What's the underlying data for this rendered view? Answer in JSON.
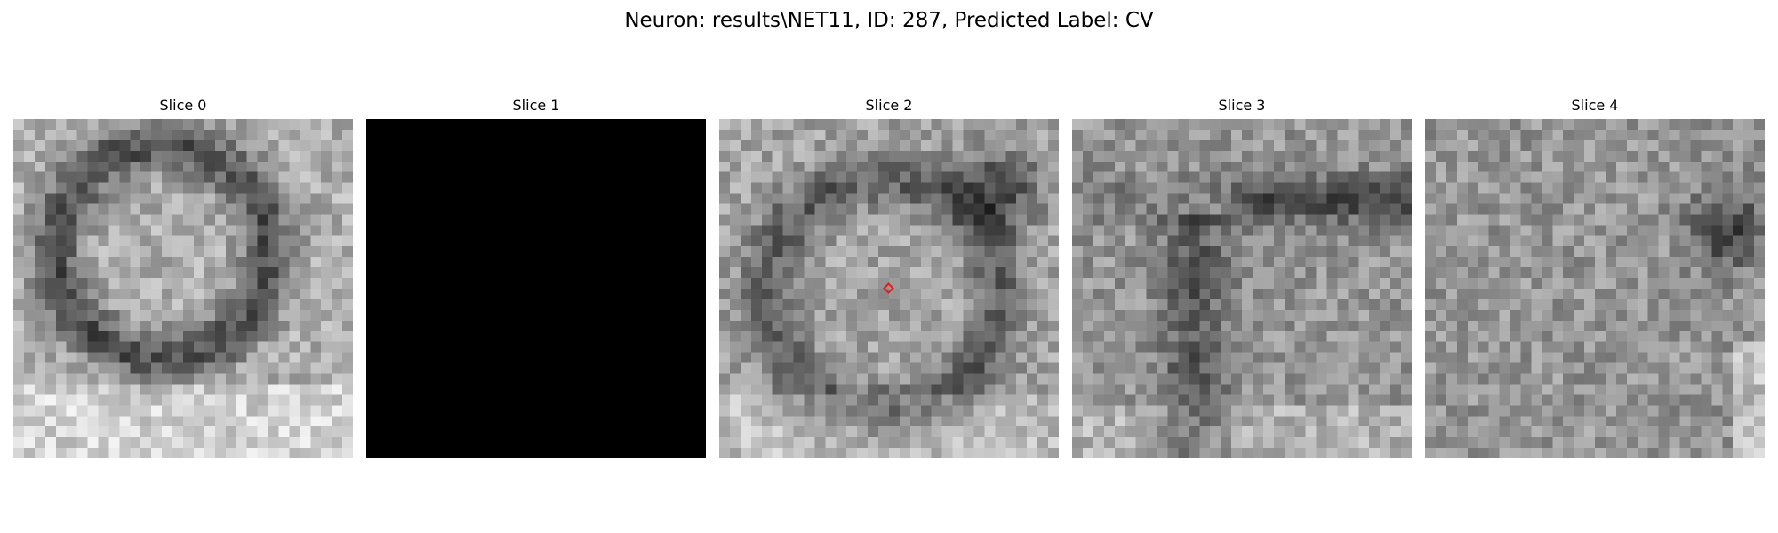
{
  "figure": {
    "title": "Neuron: results\\NET11, ID: 287, Predicted Label: CV"
  },
  "slices": [
    {
      "title": "Slice 0",
      "fill": "texture",
      "seed": 11
    },
    {
      "title": "Slice 1",
      "fill": "black",
      "seed": 0
    },
    {
      "title": "Slice 2",
      "fill": "texture",
      "seed": 29,
      "marker": true
    },
    {
      "title": "Slice 3",
      "fill": "texture",
      "seed": 47
    },
    {
      "title": "Slice 4",
      "fill": "texture",
      "seed": 83
    }
  ],
  "marker": {
    "color": "#e41a1c",
    "icon": "diamond-marker-icon"
  },
  "colormap": "grayscale"
}
